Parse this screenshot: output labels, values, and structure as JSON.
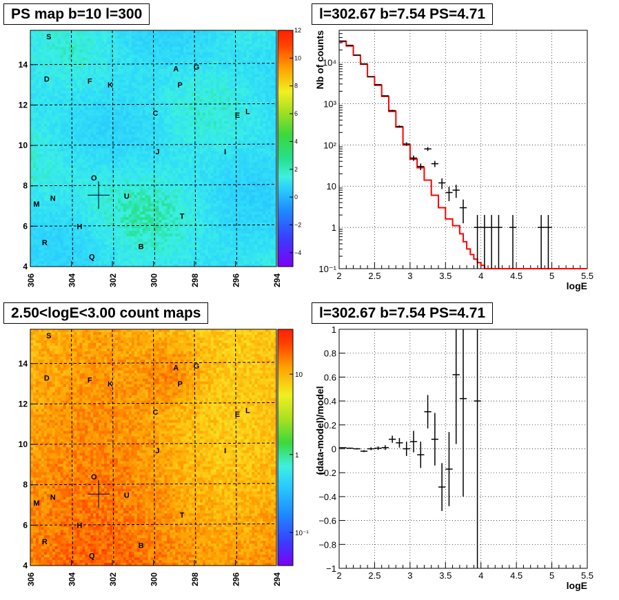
{
  "panels": {
    "tl_title": "PS map b=10 l=300",
    "tr_title": "l=302.67 b=7.54 PS=4.71",
    "bl_title": "2.50<logE<3.00 count maps",
    "br_title": "l=302.67 b=7.54 PS=4.71"
  },
  "colors": {
    "red_model": "#ff0000",
    "data": "#000000"
  },
  "chart_data": [
    {
      "type": "heatmap",
      "title": "PS map b=10 l=300",
      "xlim": [
        306,
        294
      ],
      "ylim": [
        4,
        15.7
      ],
      "x_ticks": [
        "306",
        "304",
        "302",
        "300",
        "298",
        "296",
        "294"
      ],
      "y_ticks": [
        "4",
        "6",
        "8",
        "10",
        "12",
        "14"
      ],
      "colorbar_range": [
        -5,
        12
      ],
      "colorbar_ticks": [
        "12",
        "10",
        "8",
        "6",
        "4",
        "2",
        "0",
        "−2",
        "−4"
      ],
      "marker": {
        "l": 302.67,
        "b": 7.54
      },
      "source_labels": [
        {
          "name": "S",
          "l": 305.1,
          "b": 15.4
        },
        {
          "name": "A",
          "l": 298.9,
          "b": 13.8
        },
        {
          "name": "G",
          "l": 297.9,
          "b": 13.9
        },
        {
          "name": "D",
          "l": 305.2,
          "b": 13.3
        },
        {
          "name": "F",
          "l": 303.1,
          "b": 13.2
        },
        {
          "name": "K",
          "l": 302.1,
          "b": 13.0
        },
        {
          "name": "P",
          "l": 298.7,
          "b": 13.0
        },
        {
          "name": "C",
          "l": 299.9,
          "b": 11.6
        },
        {
          "name": "E",
          "l": 295.9,
          "b": 11.5
        },
        {
          "name": "L",
          "l": 295.4,
          "b": 11.7
        },
        {
          "name": "J",
          "l": 299.8,
          "b": 9.7
        },
        {
          "name": "I",
          "l": 296.5,
          "b": 9.7
        },
        {
          "name": "O",
          "l": 302.9,
          "b": 8.4
        },
        {
          "name": "U",
          "l": 301.3,
          "b": 7.5
        },
        {
          "name": "M",
          "l": 305.7,
          "b": 7.1
        },
        {
          "name": "N",
          "l": 304.9,
          "b": 7.4
        },
        {
          "name": "T",
          "l": 298.6,
          "b": 6.5
        },
        {
          "name": "H",
          "l": 303.6,
          "b": 6.0
        },
        {
          "name": "R",
          "l": 305.3,
          "b": 5.2
        },
        {
          "name": "B",
          "l": 300.6,
          "b": 5.0
        },
        {
          "name": "Q",
          "l": 303.0,
          "b": 4.5
        }
      ]
    },
    {
      "type": "line",
      "title": "l=302.67 b=7.54 PS=4.71",
      "xlabel": "logE",
      "ylabel": "Nb of counts",
      "xlim": [
        2,
        5.5
      ],
      "ylim": [
        0.1,
        60000
      ],
      "log_y": true,
      "grid": true,
      "x_ticks": [
        "2",
        "2.5",
        "3",
        "3.5",
        "4",
        "4.5",
        "5",
        "5.5"
      ],
      "y_ticks": [
        "10⁻¹",
        "1",
        "10",
        "10²",
        "10³",
        "10⁴"
      ],
      "series": [
        {
          "kind": "model_histogram",
          "bin_edges": [
            2.0,
            2.1,
            2.2,
            2.3,
            2.4,
            2.5,
            2.6,
            2.7,
            2.8,
            2.9,
            3.0,
            3.1,
            3.2,
            3.3,
            3.4,
            3.5,
            3.6,
            3.7,
            3.75,
            3.8,
            3.85,
            3.9,
            3.95,
            4.0,
            4.05,
            4.1,
            4.15,
            4.2,
            4.25,
            4.3,
            5.5
          ],
          "values": [
            32000,
            25000,
            15000,
            9000,
            4500,
            2800,
            1500,
            650,
            270,
            100,
            45,
            28,
            14,
            6,
            3,
            1.6,
            1.1,
            0.7,
            0.45,
            0.3,
            0.22,
            0.17,
            0.14,
            0.12,
            0.1,
            0.1,
            0.1,
            0.1,
            0.1,
            0.1
          ]
        },
        {
          "kind": "data_points",
          "x": [
            2.05,
            2.15,
            2.25,
            2.35,
            2.45,
            2.55,
            2.65,
            2.75,
            2.85,
            2.95,
            3.05,
            3.15,
            3.25,
            3.35,
            3.45,
            3.55,
            3.65,
            3.75,
            3.95,
            4.05,
            4.15,
            4.25,
            4.45,
            4.85,
            4.95
          ],
          "y": [
            33000,
            26000,
            15000,
            9200,
            4500,
            2900,
            1550,
            680,
            280,
            105,
            48,
            30,
            80,
            35,
            12,
            7,
            8,
            3,
            1,
            1,
            1,
            1,
            1,
            1,
            1
          ],
          "xerr": 0.05,
          "yerr_rel": [
            0.006,
            0.006,
            0.008,
            0.01,
            0.015,
            0.02,
            0.025,
            0.04,
            0.06,
            0.1,
            0.15,
            0.18,
            0.11,
            0.17,
            0.29,
            0.38,
            0.35,
            0.58,
            1,
            1,
            1,
            1,
            1,
            1,
            1
          ]
        }
      ]
    },
    {
      "type": "heatmap",
      "title": "2.50<logE<3.00 count maps",
      "xlim": [
        306,
        294
      ],
      "ylim": [
        4,
        15.7
      ],
      "x_ticks": [
        "306",
        "304",
        "302",
        "300",
        "298",
        "296",
        "294"
      ],
      "y_ticks": [
        "4",
        "6",
        "8",
        "10",
        "12",
        "14"
      ],
      "colorbar_log": true,
      "colorbar_ticks": [
        "10",
        "1",
        "10⁻¹"
      ],
      "marker": {
        "l": 302.67,
        "b": 7.54
      }
    },
    {
      "type": "scatter",
      "title": "l=302.67 b=7.54 PS=4.71",
      "xlabel": "logE",
      "ylabel": "(data-model)/model",
      "xlim": [
        2,
        5.5
      ],
      "ylim": [
        -1,
        1
      ],
      "grid": true,
      "x_ticks": [
        "2",
        "2.5",
        "3",
        "3.5",
        "4",
        "4.5",
        "5",
        "5.5"
      ],
      "y_ticks": [
        "−1",
        "−0.8",
        "−0.6",
        "−0.4",
        "−0.2",
        "0",
        "0.2",
        "0.4",
        "0.6",
        "0.8",
        "1"
      ],
      "x": [
        2.05,
        2.15,
        2.25,
        2.35,
        2.45,
        2.55,
        2.65,
        2.75,
        2.85,
        2.95,
        3.05,
        3.15,
        3.25,
        3.35,
        3.45,
        3.55,
        3.65,
        3.75,
        3.95
      ],
      "y": [
        0.01,
        0.005,
        0.0,
        -0.02,
        0.0,
        0.005,
        0.01,
        0.08,
        0.05,
        0.0,
        0.06,
        -0.05,
        0.31,
        0.08,
        -0.32,
        -0.17,
        0.62,
        0.42,
        0.4
      ],
      "yerr": [
        0.004,
        0.005,
        0.006,
        0.008,
        0.012,
        0.015,
        0.02,
        0.03,
        0.04,
        0.06,
        0.09,
        0.11,
        0.14,
        0.22,
        0.2,
        0.31,
        0.58,
        0.82,
        1.4
      ],
      "xerr": 0.05
    }
  ]
}
